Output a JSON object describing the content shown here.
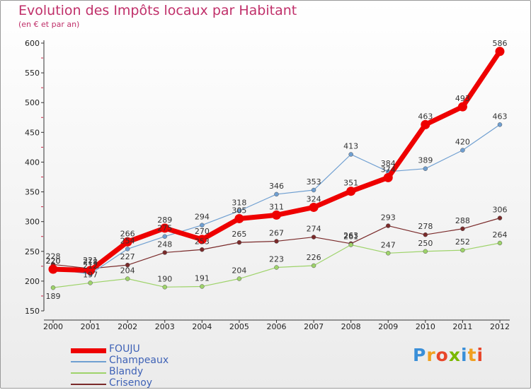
{
  "header": {
    "title": "Evolution des Impôts locaux par Habitant",
    "subtitle": "(en € et par an)"
  },
  "logo": {
    "text": "Proxiti",
    "colors": [
      "#3a8fd8",
      "#f0a020",
      "#e8462a",
      "#7ab800"
    ]
  },
  "chart_data": {
    "type": "line",
    "x": [
      "2000",
      "2001",
      "2002",
      "2003",
      "2004",
      "2005",
      "2006",
      "2007",
      "2008",
      "2009",
      "2010",
      "2011",
      "2012"
    ],
    "ylim": [
      150,
      600
    ],
    "yticks": [
      150,
      200,
      250,
      300,
      350,
      400,
      450,
      500,
      550,
      600
    ],
    "grid": false,
    "legend": "bottom-left",
    "series": [
      {
        "name": "FOUJU",
        "color": "#ee0000",
        "values": [
          220,
          218,
          266,
          289,
          270,
          305,
          311,
          324,
          351,
          374,
          463,
          493,
          586
        ]
      },
      {
        "name": "Champeaux",
        "color": "#6f9fd1",
        "values": [
          220,
          212,
          254,
          275,
          294,
          318,
          346,
          353,
          413,
          384,
          389,
          420,
          463
        ]
      },
      {
        "name": "Blandy",
        "color": "#9ed36a",
        "values": [
          189,
          197,
          204,
          190,
          191,
          204,
          223,
          226,
          261,
          247,
          250,
          252,
          264
        ]
      },
      {
        "name": "Crisenoy",
        "color": "#7a2a2a",
        "values": [
          228,
          221,
          227,
          248,
          253,
          265,
          267,
          274,
          263,
          293,
          278,
          288,
          306
        ]
      }
    ],
    "annotations": {
      "FOUJU": [
        "220",
        "218",
        "266",
        "289",
        "270",
        "305",
        "311",
        "324",
        "351",
        "374",
        "463",
        "493",
        "586"
      ],
      "Champeaux": [
        "220",
        "212",
        "254",
        "275",
        "294",
        "318",
        "346",
        "353",
        "413",
        "384",
        "389",
        "420",
        "463"
      ],
      "Blandy": [
        "189",
        "197",
        "204",
        "190",
        "191",
        "204",
        "223",
        "226",
        "261",
        "247",
        "250",
        "252",
        "264"
      ],
      "Crisenoy": [
        "228",
        "221",
        "227",
        "248",
        "253",
        "265",
        "267",
        "274",
        "263",
        "293",
        "278",
        "288",
        "306"
      ]
    }
  }
}
